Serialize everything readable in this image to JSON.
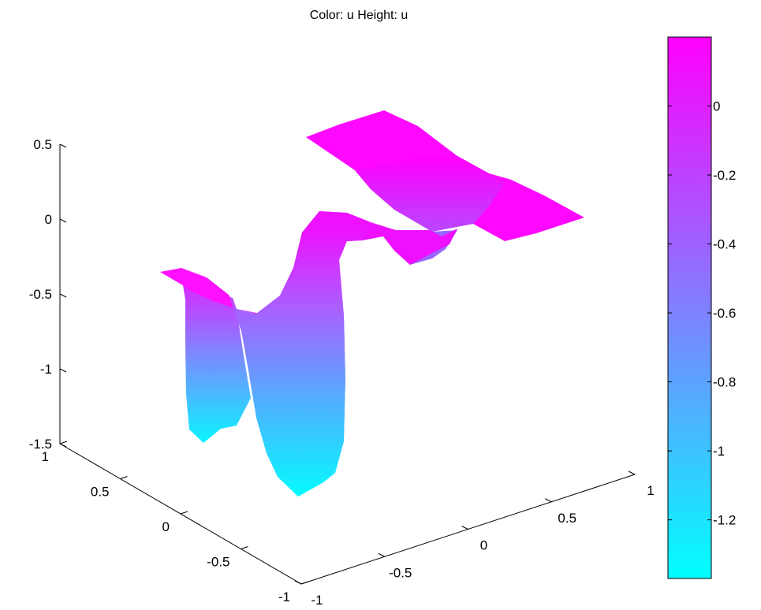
{
  "chart_data": {
    "type": "surface",
    "title": "Color: u  Height: u",
    "colormap": {
      "name": "cool",
      "low_color": "#00ffff",
      "high_color": "#ff00ff",
      "clim": [
        -1.37,
        0.2
      ]
    },
    "axes": {
      "x": {
        "range": [
          -1,
          1
        ],
        "ticks": [
          "-1",
          "-0.5",
          "0",
          "0.5",
          "1"
        ]
      },
      "y": {
        "range": [
          -1,
          1
        ],
        "ticks": [
          "-1",
          "-0.5",
          "0",
          "0.5",
          "1"
        ]
      },
      "z": {
        "range": [
          -1.5,
          0.5
        ],
        "ticks": [
          "-1.5",
          "-1",
          "-0.5",
          "0",
          "0.5"
        ]
      }
    },
    "colorbar": {
      "ticks": [
        "0",
        "-0.2",
        "-0.4",
        "-0.6",
        "-0.8",
        "-1",
        "-1.2"
      ]
    },
    "grid": false,
    "surface_height_range": [
      -1.37,
      0.2
    ]
  }
}
